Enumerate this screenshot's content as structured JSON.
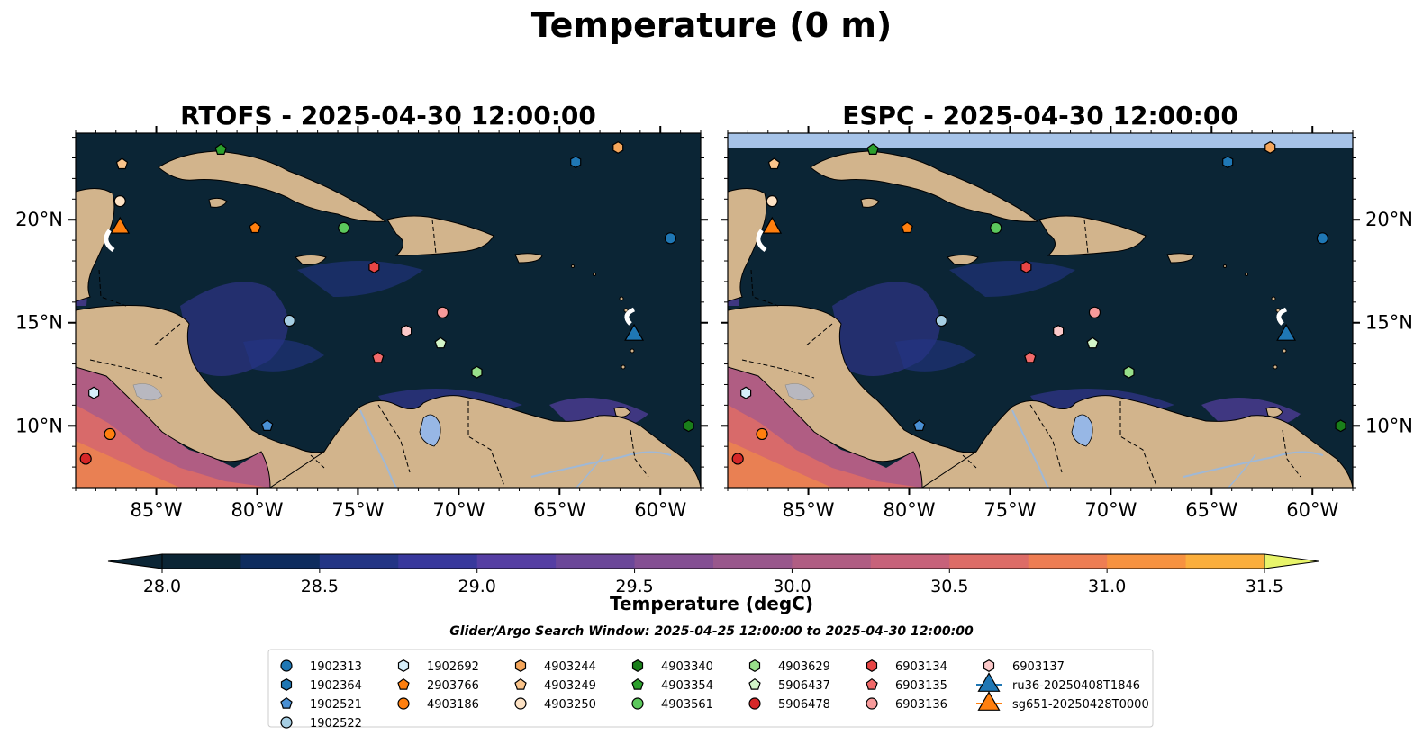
{
  "figure": {
    "suptitle": "Temperature (0 m)",
    "search_window": "Glider/Argo Search Window: 2025-04-25 12:00:00 to 2025-04-30 12:00:00"
  },
  "panels": [
    {
      "title": "RTOFS - 2025-04-30 12:00:00"
    },
    {
      "title": "ESPC - 2025-04-30 12:00:00"
    }
  ],
  "chart_data": {
    "type": "heatmap",
    "title": "Temperature (0 m)",
    "xlim": [
      -89,
      -58
    ],
    "ylim": [
      7,
      24.2
    ],
    "x_ticks": [
      -85,
      -80,
      -75,
      -70,
      -65,
      -60
    ],
    "x_tick_labels": [
      "85°W",
      "80°W",
      "75°W",
      "70°W",
      "65°W",
      "60°W"
    ],
    "y_ticks": [
      10,
      15,
      20
    ],
    "y_tick_labels": [
      "10°N",
      "15°N",
      "20°N"
    ],
    "colorbar": {
      "label": "Temperature (degC)",
      "min": 28.0,
      "max": 31.5,
      "step": 0.25,
      "extend": "both",
      "tick_values": [
        28.0,
        28.5,
        29.0,
        29.5,
        30.0,
        30.5,
        31.0,
        31.5
      ],
      "tick_labels": [
        "28.0",
        "28.5",
        "29.0",
        "29.5",
        "30.0",
        "30.5",
        "31.0",
        "31.5"
      ],
      "colors": [
        "#0b2535",
        "#0e2c5e",
        "#233585",
        "#38389c",
        "#553ea3",
        "#6b4799",
        "#844f93",
        "#99578c",
        "#b05d83",
        "#c7627a",
        "#dd6c67",
        "#ee7d53",
        "#f79240",
        "#fbae3c",
        "#f6cd44",
        "#e8f46a"
      ]
    },
    "series": [
      {
        "name": "1902313",
        "marker": "circle",
        "color": "#1f77b4",
        "points": [
          [
            -59.5,
            19.1
          ]
        ]
      },
      {
        "name": "1902364",
        "marker": "hexagon",
        "color": "#1f77b4",
        "points": [
          [
            -64.2,
            22.8
          ]
        ]
      },
      {
        "name": "1902521",
        "marker": "pentagon",
        "color": "#4a90d4",
        "points": [
          [
            -79.5,
            10.0
          ]
        ]
      },
      {
        "name": "1902522",
        "marker": "circle",
        "color": "#a6cee3",
        "points": [
          [
            -78.4,
            15.1
          ]
        ]
      },
      {
        "name": "1902692",
        "marker": "hexagon",
        "color": "#d6eefa",
        "points": [
          [
            -88.1,
            11.6
          ]
        ]
      },
      {
        "name": "2903766",
        "marker": "pentagon",
        "color": "#ff7f0e",
        "points": [
          [
            -80.1,
            19.6
          ]
        ]
      },
      {
        "name": "4903186",
        "marker": "circle",
        "color": "#ff7f0e",
        "points": [
          [
            -87.3,
            9.6
          ]
        ]
      },
      {
        "name": "4903244",
        "marker": "hexagon",
        "color": "#f5a65b",
        "points": [
          [
            -62.1,
            23.5
          ]
        ]
      },
      {
        "name": "4903249",
        "marker": "pentagon",
        "color": "#fbc48a",
        "points": [
          [
            -86.7,
            22.7
          ]
        ]
      },
      {
        "name": "4903250",
        "marker": "circle",
        "color": "#fde2c4",
        "points": [
          [
            -86.8,
            20.9
          ]
        ]
      },
      {
        "name": "4903340",
        "marker": "hexagon",
        "color": "#1a7f1a",
        "points": [
          [
            -58.6,
            10.0
          ]
        ]
      },
      {
        "name": "4903354",
        "marker": "pentagon",
        "color": "#2ca02c",
        "points": [
          [
            -81.8,
            23.4
          ]
        ]
      },
      {
        "name": "4903561",
        "marker": "circle",
        "color": "#5cc85c",
        "points": [
          [
            -75.7,
            19.6
          ]
        ]
      },
      {
        "name": "4903629",
        "marker": "hexagon",
        "color": "#98df8a",
        "points": [
          [
            -69.1,
            12.6
          ]
        ]
      },
      {
        "name": "5906437",
        "marker": "pentagon",
        "color": "#d3f5c8",
        "points": [
          [
            -70.9,
            14.0
          ]
        ]
      },
      {
        "name": "5906478",
        "marker": "circle",
        "color": "#d62728",
        "points": [
          [
            -88.5,
            8.4
          ]
        ]
      },
      {
        "name": "6903134",
        "marker": "hexagon",
        "color": "#e84545",
        "points": [
          [
            -74.2,
            17.7
          ]
        ]
      },
      {
        "name": "6903135",
        "marker": "pentagon",
        "color": "#f26a6a",
        "points": [
          [
            -74.0,
            13.3
          ]
        ]
      },
      {
        "name": "6903136",
        "marker": "circle",
        "color": "#f79a9a",
        "points": [
          [
            -70.8,
            15.5
          ]
        ]
      },
      {
        "name": "6903137",
        "marker": "hexagon",
        "color": "#fcc9c9",
        "points": [
          [
            -72.6,
            14.6
          ]
        ]
      },
      {
        "name": "ru36-20250408T1846",
        "marker": "triangle",
        "color": "#1f77b4",
        "points": [
          [
            -61.3,
            14.5
          ]
        ]
      },
      {
        "name": "sg651-20250428T0000",
        "marker": "triangle",
        "color": "#ff7f0e",
        "points": [
          [
            -86.8,
            19.7
          ]
        ]
      }
    ]
  },
  "colors": {
    "land": "#d2b48c",
    "ocean_deep": "#0b2535",
    "river": "#9fb8d6",
    "lake": "#97b7e5",
    "nodata_band": "#a6c3e8"
  }
}
